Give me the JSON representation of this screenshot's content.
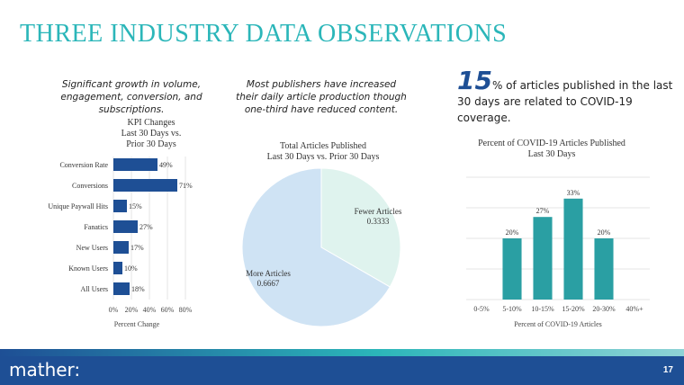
{
  "page_title": "THREE INDUSTRY DATA OBSERVATIONS",
  "observations": {
    "left": "Significant growth in volume, engagement, conversion, and subscriptions.",
    "middle": "Most publishers have increased their daily article production though one-third have reduced content.",
    "right_number": "15",
    "right_text": "% of articles published in the last 30 days are related to COVID-19 coverage."
  },
  "footer": {
    "logo": "mather:",
    "page_number": "17"
  },
  "colors": {
    "title": "#2bb6b9",
    "bar_navy": "#1e4f95",
    "bar_teal": "#2a9fa3",
    "pie_light": "#cfe3f4",
    "pie_mint": "#dff3ee"
  },
  "chart_data": [
    {
      "type": "bar",
      "orientation": "horizontal",
      "title": "KPI Changes Last 30 Days vs. Prior 30 Days",
      "title_lines": [
        "KPI Changes",
        "Last 30 Days vs.",
        "Prior 30 Days"
      ],
      "categories": [
        "Conversion Rate",
        "Conversions",
        "Unique Paywall Hits",
        "Fanatics",
        "New Users",
        "Known Users",
        "All Users"
      ],
      "values": [
        49,
        71,
        15,
        27,
        17,
        10,
        18
      ],
      "data_labels": [
        "49%",
        "71%",
        "15%",
        "27%",
        "17%",
        "10%",
        "18%"
      ],
      "xlabel": "Percent Change",
      "xlim": [
        0,
        80
      ],
      "xticks": [
        "0%",
        "20%",
        "40%",
        "60%",
        "80%"
      ]
    },
    {
      "type": "pie",
      "title": "Total Articles Published Last 30 Days vs. Prior 30 Days",
      "title_lines": [
        "Total Articles Published",
        "Last 30 Days vs. Prior 30 Days"
      ],
      "labels": [
        "Fewer Articles",
        "More Articles"
      ],
      "values": [
        0.3333,
        0.6667
      ],
      "value_labels": [
        "0.3333",
        "0.6667"
      ]
    },
    {
      "type": "bar",
      "orientation": "vertical",
      "title": "Percent of COVID-19 Articles Published Last 30 Days",
      "title_lines": [
        "Percent of COVID-19 Articles Published",
        "Last 30 Days"
      ],
      "categories": [
        "0-5%",
        "5-10%",
        "10-15%",
        "15-20%",
        "20-30%",
        "40%+"
      ],
      "values": [
        0,
        20,
        27,
        33,
        20,
        0
      ],
      "data_labels": [
        "",
        "20%",
        "27%",
        "33%",
        "20%",
        ""
      ],
      "xlabel": "Percent of COVID-19 Articles",
      "ylim": [
        0,
        40
      ]
    }
  ]
}
